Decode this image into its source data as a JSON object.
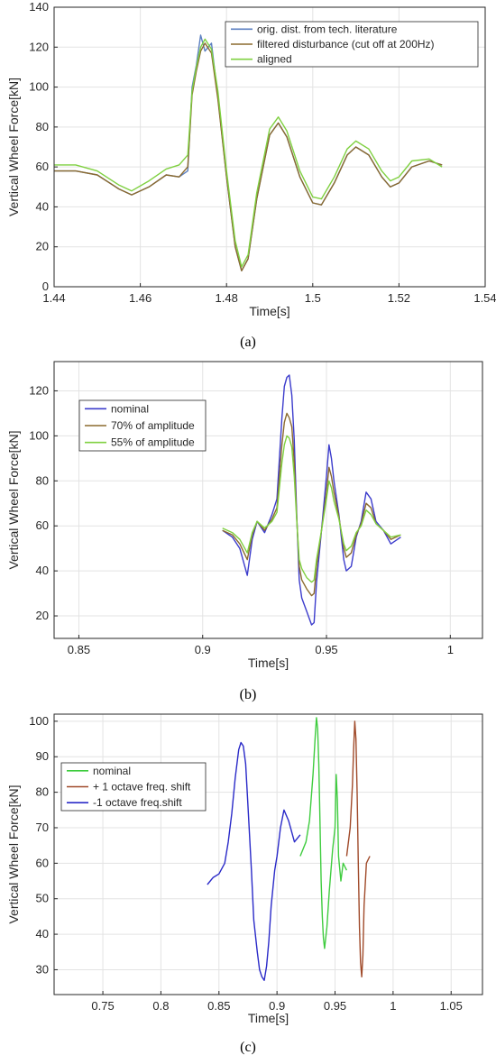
{
  "chart_data": [
    {
      "id": "a",
      "type": "line",
      "caption": "(a)",
      "xlabel": "Time[s]",
      "ylabel": "Vertical Wheel Force[kN]",
      "xlim": [
        1.44,
        1.54
      ],
      "ylim": [
        0,
        140
      ],
      "xticks": [
        1.44,
        1.46,
        1.48,
        1.5,
        1.52,
        1.54
      ],
      "xtick_labels": [
        "1.44",
        "1.46",
        "1.48",
        "1.5",
        "1.52",
        "1.54"
      ],
      "yticks": [
        0,
        20,
        40,
        60,
        80,
        100,
        120,
        140
      ],
      "ytick_labels": [
        "0",
        "20",
        "40",
        "60",
        "80",
        "100",
        "120",
        "140"
      ],
      "grid": true,
      "legend_position": "top-right",
      "series": [
        {
          "name": "orig. dist. from tech. literature",
          "color": "#5b7fc0",
          "x": [
            1.44,
            1.445,
            1.45,
            1.455,
            1.458,
            1.462,
            1.466,
            1.469,
            1.471,
            1.472,
            1.473,
            1.474,
            1.475,
            1.4765,
            1.478,
            1.48,
            1.482,
            1.4835,
            1.485,
            1.487,
            1.49,
            1.492,
            1.494,
            1.497,
            1.5,
            1.502,
            1.505,
            1.508,
            1.51,
            1.513,
            1.516,
            1.518,
            1.52,
            1.523,
            1.527,
            1.53
          ],
          "y": [
            58,
            58,
            56,
            49,
            46,
            50,
            56,
            55,
            58,
            100,
            111,
            126,
            118,
            122,
            95,
            55,
            20,
            8,
            14,
            44,
            76,
            82,
            75,
            55,
            42,
            41,
            52,
            66,
            70,
            66,
            55,
            50,
            52,
            60,
            63,
            61
          ]
        },
        {
          "name": "filtered disturbance (cut off at 200Hz)",
          "color": "#8b6a2e",
          "x": [
            1.44,
            1.445,
            1.45,
            1.455,
            1.458,
            1.462,
            1.466,
            1.469,
            1.471,
            1.472,
            1.473,
            1.474,
            1.475,
            1.4765,
            1.478,
            1.48,
            1.482,
            1.4835,
            1.485,
            1.487,
            1.49,
            1.492,
            1.494,
            1.497,
            1.5,
            1.502,
            1.505,
            1.508,
            1.51,
            1.513,
            1.516,
            1.518,
            1.52,
            1.523,
            1.527,
            1.53
          ],
          "y": [
            58,
            58,
            56,
            49,
            46,
            50,
            56,
            55,
            60,
            96,
            108,
            118,
            122,
            117,
            94,
            55,
            20,
            8,
            14,
            44,
            76,
            82,
            75,
            55,
            42,
            41,
            52,
            66,
            70,
            66,
            55,
            50,
            52,
            60,
            63,
            61
          ]
        },
        {
          "name": "aligned",
          "color": "#7fd040",
          "x": [
            1.44,
            1.445,
            1.45,
            1.455,
            1.458,
            1.462,
            1.466,
            1.469,
            1.471,
            1.472,
            1.473,
            1.474,
            1.475,
            1.4765,
            1.478,
            1.48,
            1.482,
            1.4835,
            1.485,
            1.487,
            1.49,
            1.492,
            1.494,
            1.497,
            1.5,
            1.502,
            1.505,
            1.508,
            1.51,
            1.513,
            1.516,
            1.518,
            1.52,
            1.523,
            1.527,
            1.53
          ],
          "y": [
            61,
            61,
            58,
            51,
            48,
            53,
            59,
            61,
            66,
            98,
            110,
            120,
            124,
            119,
            98,
            58,
            23,
            10,
            16,
            47,
            79,
            85,
            78,
            58,
            45,
            44,
            55,
            69,
            73,
            69,
            58,
            53,
            55,
            63,
            64,
            60
          ]
        }
      ]
    },
    {
      "id": "b",
      "type": "line",
      "caption": "(b)",
      "xlabel": "Time[s]",
      "ylabel": "Vertical Wheel Force[kN]",
      "xlim": [
        0.84,
        1.013
      ],
      "ylim": [
        10,
        133
      ],
      "xticks": [
        0.85,
        0.9,
        0.95,
        1.0
      ],
      "xtick_labels": [
        "0.85",
        "0.9",
        "0.95",
        "1"
      ],
      "yticks": [
        20,
        40,
        60,
        80,
        100,
        120
      ],
      "ytick_labels": [
        "20",
        "40",
        "60",
        "80",
        "100",
        "120"
      ],
      "grid": true,
      "legend_position": "top-left",
      "series": [
        {
          "name": "nominal",
          "color": "#3c3ccc",
          "x": [
            0.908,
            0.912,
            0.915,
            0.918,
            0.92,
            0.922,
            0.925,
            0.928,
            0.93,
            0.932,
            0.933,
            0.934,
            0.935,
            0.936,
            0.937,
            0.938,
            0.939,
            0.94,
            0.942,
            0.944,
            0.945,
            0.946,
            0.948,
            0.95,
            0.951,
            0.952,
            0.953,
            0.955,
            0.957,
            0.958,
            0.96,
            0.962,
            0.964,
            0.966,
            0.968,
            0.97,
            0.973,
            0.976,
            0.98
          ],
          "y": [
            58,
            55,
            50,
            38,
            54,
            62,
            57,
            65,
            72,
            108,
            122,
            126,
            127,
            118,
            98,
            64,
            36,
            28,
            22,
            16,
            17,
            35,
            58,
            82,
            96,
            90,
            80,
            65,
            45,
            40,
            42,
            55,
            62,
            75,
            72,
            62,
            58,
            52,
            55
          ]
        },
        {
          "name": "70% of amplitude",
          "color": "#8b6a2e",
          "x": [
            0.908,
            0.912,
            0.915,
            0.918,
            0.92,
            0.922,
            0.925,
            0.928,
            0.93,
            0.932,
            0.933,
            0.934,
            0.935,
            0.936,
            0.937,
            0.938,
            0.939,
            0.94,
            0.942,
            0.944,
            0.945,
            0.946,
            0.948,
            0.95,
            0.951,
            0.952,
            0.953,
            0.955,
            0.957,
            0.958,
            0.96,
            0.962,
            0.964,
            0.966,
            0.968,
            0.97,
            0.973,
            0.976,
            0.98
          ],
          "y": [
            58,
            56,
            52,
            45,
            56,
            62,
            58,
            63,
            68,
            96,
            106,
            110,
            108,
            104,
            88,
            63,
            42,
            36,
            32,
            29,
            30,
            42,
            58,
            75,
            86,
            82,
            75,
            64,
            50,
            46,
            48,
            56,
            61,
            70,
            68,
            61,
            58,
            54,
            56
          ]
        },
        {
          "name": "55% of amplitude",
          "color": "#7fd040",
          "x": [
            0.908,
            0.912,
            0.915,
            0.918,
            0.92,
            0.922,
            0.925,
            0.928,
            0.93,
            0.932,
            0.933,
            0.934,
            0.935,
            0.936,
            0.937,
            0.938,
            0.939,
            0.94,
            0.942,
            0.944,
            0.945,
            0.946,
            0.948,
            0.95,
            0.951,
            0.952,
            0.953,
            0.955,
            0.957,
            0.958,
            0.96,
            0.962,
            0.964,
            0.966,
            0.968,
            0.97,
            0.973,
            0.976,
            0.98
          ],
          "y": [
            59,
            57,
            54,
            48,
            57,
            62,
            59,
            62,
            66,
            88,
            96,
            100,
            99,
            95,
            82,
            62,
            45,
            41,
            37,
            35,
            36,
            45,
            58,
            72,
            80,
            77,
            71,
            63,
            52,
            49,
            51,
            57,
            60,
            67,
            65,
            61,
            58,
            55,
            56
          ]
        }
      ]
    },
    {
      "id": "c",
      "type": "line",
      "caption": "(c)",
      "xlabel": "Time[s]",
      "ylabel": "Vertical Wheel Force[kN]",
      "xlim": [
        0.708,
        1.077
      ],
      "ylim": [
        23,
        102
      ],
      "xticks": [
        0.75,
        0.8,
        0.85,
        0.9,
        0.95,
        1.0,
        1.05
      ],
      "xtick_labels": [
        "0.75",
        "0.8",
        "0.85",
        "0.9",
        "0.95",
        "1",
        "1.05"
      ],
      "yticks": [
        30,
        40,
        50,
        60,
        70,
        80,
        90,
        100
      ],
      "ytick_labels": [
        "30",
        "40",
        "50",
        "60",
        "70",
        "80",
        "90",
        "100"
      ],
      "grid": true,
      "legend_position": "top-left",
      "series": [
        {
          "name": "nominal",
          "color": "#3fcc3f",
          "x": [
            0.92,
            0.925,
            0.928,
            0.931,
            0.933,
            0.934,
            0.935,
            0.936,
            0.937,
            0.938,
            0.939,
            0.94,
            0.941,
            0.943,
            0.945,
            0.948,
            0.95,
            0.951,
            0.952,
            0.953,
            0.955,
            0.957,
            0.96
          ],
          "y": [
            62,
            66,
            72,
            85,
            96,
            101,
            98,
            88,
            72,
            55,
            45,
            39,
            36,
            42,
            52,
            64,
            70,
            85,
            78,
            62,
            55,
            60,
            58
          ]
        },
        {
          "name": "+ 1 octave freq. shift",
          "color": "#a04a2a",
          "x": [
            0.96,
            0.963,
            0.965,
            0.966,
            0.967,
            0.968,
            0.969,
            0.97,
            0.971,
            0.972,
            0.973,
            0.974,
            0.975,
            0.977,
            0.98
          ],
          "y": [
            62,
            70,
            82,
            92,
            100,
            95,
            80,
            60,
            42,
            32,
            28,
            34,
            48,
            60,
            62
          ]
        },
        {
          "name": "-1 octave freq.shift",
          "color": "#2a2ac8",
          "x": [
            0.84,
            0.845,
            0.85,
            0.855,
            0.858,
            0.861,
            0.864,
            0.867,
            0.869,
            0.871,
            0.873,
            0.875,
            0.878,
            0.88,
            0.883,
            0.885,
            0.887,
            0.889,
            0.891,
            0.893,
            0.895,
            0.898,
            0.9,
            0.903,
            0.906,
            0.91,
            0.915,
            0.92
          ],
          "y": [
            54,
            56,
            57,
            60,
            66,
            74,
            84,
            92,
            94,
            93,
            88,
            76,
            58,
            44,
            35,
            30,
            28,
            27,
            31,
            38,
            48,
            58,
            62,
            70,
            75,
            72,
            66,
            68
          ]
        }
      ]
    }
  ]
}
